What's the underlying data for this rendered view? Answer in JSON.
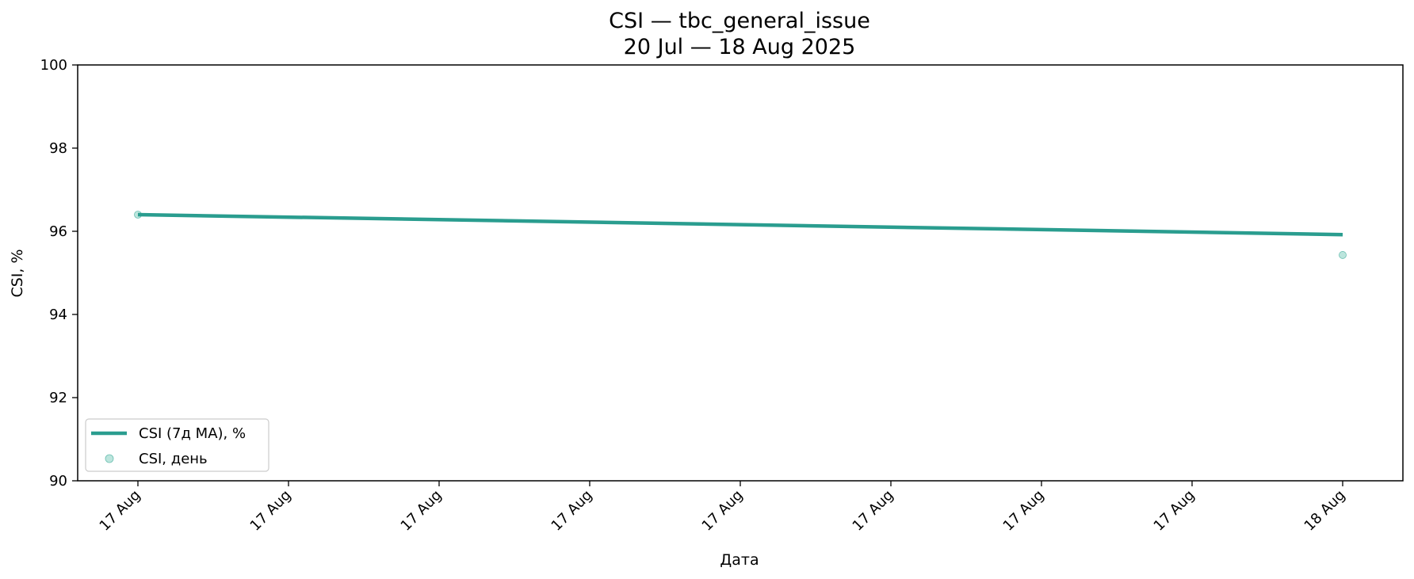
{
  "chart_data": {
    "type": "line",
    "title": "CSI — tbc_general_issue",
    "subtitle": "20 Jul — 18 Aug 2025",
    "xlabel": "Дата",
    "ylabel": "CSI, %",
    "ylim": [
      90,
      100
    ],
    "yticks": [
      90,
      92,
      94,
      96,
      98,
      100
    ],
    "xticks": [
      "17 Aug",
      "17 Aug",
      "17 Aug",
      "17 Aug",
      "17 Aug",
      "17 Aug",
      "17 Aug",
      "17 Aug",
      "18 Aug"
    ],
    "x": [
      "17 Aug",
      "18 Aug"
    ],
    "series": [
      {
        "name": "CSI (7д MA), %",
        "kind": "line",
        "color": "#2a9d8f",
        "values": [
          96.4,
          95.92
        ]
      },
      {
        "name": "CSI, день",
        "kind": "scatter",
        "color": "#8fd3c7",
        "values": [
          96.4,
          95.43
        ]
      }
    ],
    "grid": false,
    "legend_position": "lower-left"
  }
}
